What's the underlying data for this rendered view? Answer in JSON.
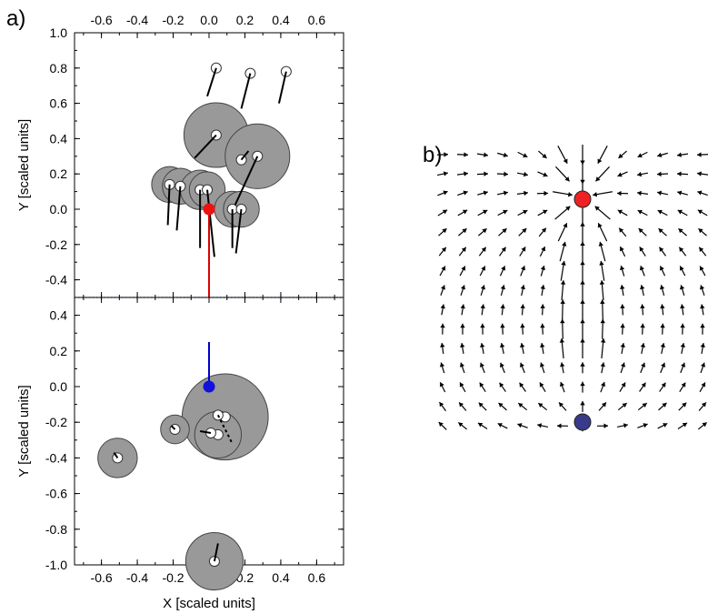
{
  "panel_labels": {
    "a": "a)",
    "b": "b)"
  },
  "chart_data": [
    {
      "type": "scatter",
      "panel": "a-top",
      "title": "",
      "xlabel": "",
      "ylabel": "Y [scaled units]",
      "xlim": [
        -0.75,
        0.75
      ],
      "ylim": [
        -0.5,
        1.0
      ],
      "xticks": [
        "-0.6",
        "-0.4",
        "-0.2",
        "0.0",
        "0.2",
        "0.4",
        "0.6"
      ],
      "xtick_values": [
        -0.6,
        -0.4,
        -0.2,
        0.0,
        0.2,
        0.4,
        0.6
      ],
      "yticks": [
        "1.0",
        "0.8",
        "0.6",
        "0.4",
        "0.2",
        "0.0",
        "-0.2",
        "-0.4"
      ],
      "ytick_values": [
        1.0,
        0.8,
        0.6,
        0.4,
        0.2,
        0.0,
        -0.2,
        -0.4
      ],
      "reference_point": {
        "x": 0.0,
        "y": 0.0,
        "color": "#ee1111",
        "line_to": {
          "x": 0.0,
          "y": -0.5
        },
        "line_color": "#dd0000"
      },
      "boundary_line": {
        "y": -0.5,
        "color": "#3355ee",
        "style": "dotted"
      },
      "agents": [
        {
          "x": 0.04,
          "y": 0.8,
          "r": 0.0,
          "line_to": {
            "x": -0.01,
            "y": 0.64
          }
        },
        {
          "x": 0.23,
          "y": 0.77,
          "r": 0.0,
          "line_to": {
            "x": 0.18,
            "y": 0.57
          }
        },
        {
          "x": 0.43,
          "y": 0.78,
          "r": 0.0,
          "line_to": {
            "x": 0.39,
            "y": 0.6
          }
        },
        {
          "x": 0.04,
          "y": 0.42,
          "r": 0.18,
          "line_to": {
            "x": -0.08,
            "y": 0.29
          }
        },
        {
          "x": 0.27,
          "y": 0.3,
          "r": 0.18,
          "line_to": {
            "x": 0.13,
            "y": -0.01
          }
        },
        {
          "x": 0.18,
          "y": 0.28,
          "r": 0.0,
          "line_to": {
            "x": 0.22,
            "y": 0.33
          }
        },
        {
          "x": -0.22,
          "y": 0.14,
          "r": 0.1,
          "line_to": {
            "x": -0.23,
            "y": -0.09
          }
        },
        {
          "x": -0.16,
          "y": 0.13,
          "r": 0.1,
          "line_to": {
            "x": -0.18,
            "y": -0.12
          }
        },
        {
          "x": -0.05,
          "y": 0.11,
          "r": 0.11,
          "line_to": {
            "x": -0.05,
            "y": -0.22
          }
        },
        {
          "x": -0.01,
          "y": 0.11,
          "r": 0.1,
          "line_to": {
            "x": 0.03,
            "y": -0.27
          }
        },
        {
          "x": 0.13,
          "y": 0.0,
          "r": 0.1,
          "line_to": {
            "x": 0.13,
            "y": -0.22
          }
        },
        {
          "x": 0.18,
          "y": 0.0,
          "r": 0.1,
          "line_to": {
            "x": 0.15,
            "y": -0.25
          }
        }
      ]
    },
    {
      "type": "scatter",
      "panel": "a-bottom",
      "title": "",
      "xlabel": "X [scaled units]",
      "ylabel": "Y [scaled units]",
      "xlim": [
        -0.75,
        0.75
      ],
      "ylim": [
        -1.0,
        0.5
      ],
      "xticks": [
        "-0.6",
        "-0.4",
        "-0.2",
        "0.0",
        "0.2",
        "0.4",
        "0.6"
      ],
      "xtick_values": [
        -0.6,
        -0.4,
        -0.2,
        0.0,
        0.2,
        0.4,
        0.6
      ],
      "yticks": [
        "0.4",
        "0.2",
        "0.0",
        "-0.2",
        "-0.4",
        "-0.6",
        "-0.8",
        "-1.0"
      ],
      "ytick_values": [
        0.4,
        0.2,
        0.0,
        -0.2,
        -0.4,
        -0.6,
        -0.8,
        -1.0
      ],
      "reference_point": {
        "x": 0.0,
        "y": 0.0,
        "color": "#1111dd",
        "line_to": {
          "x": 0.0,
          "y": 0.25
        },
        "line_color": "#0000cc"
      },
      "agents": [
        {
          "x": 0.09,
          "y": -0.17,
          "r": 0.24,
          "line_to": null
        },
        {
          "x": 0.05,
          "y": -0.27,
          "r": 0.13,
          "line_to": null
        },
        {
          "x": -0.19,
          "y": -0.24,
          "r": 0.08,
          "line_to": {
            "x": -0.21,
            "y": -0.22
          }
        },
        {
          "x": 0.01,
          "y": -0.26,
          "r": 0.0,
          "line_to": {
            "x": -0.05,
            "y": -0.25
          }
        },
        {
          "x": 0.05,
          "y": -0.16,
          "r": 0.0,
          "line_to": {
            "x": 0.13,
            "y": -0.32
          },
          "dashed": true
        },
        {
          "x": -0.51,
          "y": -0.4,
          "r": 0.11,
          "line_to": {
            "x": -0.53,
            "y": -0.37
          }
        },
        {
          "x": 0.03,
          "y": -0.98,
          "r": 0.16,
          "line_to": {
            "x": 0.05,
            "y": -0.88
          }
        }
      ]
    },
    {
      "type": "vector_field",
      "panel": "b",
      "title": "",
      "grid": {
        "cols": 14,
        "rows": 15
      },
      "sources": [
        {
          "name": "",
          "col": 7,
          "row": 2.3,
          "color": "#ee2222",
          "kind": "red"
        },
        {
          "name": "",
          "col": 7,
          "row": 13.8,
          "color": "#3a3a8a",
          "kind": "blue"
        }
      ]
    }
  ]
}
